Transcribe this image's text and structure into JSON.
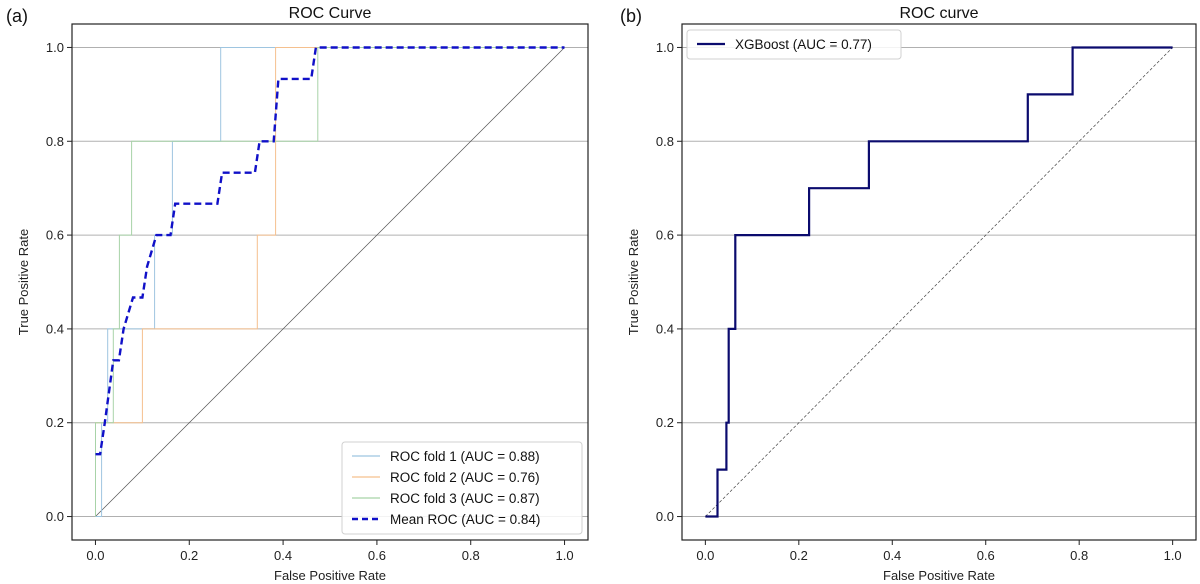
{
  "chart_data": [
    {
      "type": "line",
      "panel_label": "(a)",
      "title": "ROC Curve",
      "xlabel": "False Positive Rate",
      "ylabel": "True Positive Rate",
      "xlim": [
        -0.05,
        1.05
      ],
      "ylim": [
        -0.05,
        1.05
      ],
      "xticks": [
        "0.0",
        "0.2",
        "0.4",
        "0.6",
        "0.8",
        "1.0"
      ],
      "yticks": [
        "0.0",
        "0.2",
        "0.4",
        "0.6",
        "0.8",
        "1.0"
      ],
      "grid": "horizontal",
      "legend_position": "lower-right",
      "chance_line": {
        "x": [
          0,
          1
        ],
        "y": [
          0,
          1
        ],
        "color": "#555555",
        "style": "solid-thin"
      },
      "series": [
        {
          "name": "ROC fold 1 (AUC = 0.88)",
          "color": "#9ec5e0",
          "style": "solid",
          "x": [
            0,
            0.013,
            0.013,
            0.026,
            0.026,
            0.126,
            0.126,
            0.164,
            0.164,
            0.267,
            0.267,
            1.0
          ],
          "y": [
            0,
            0,
            0.2,
            0.2,
            0.4,
            0.4,
            0.6,
            0.6,
            0.8,
            0.8,
            1.0,
            1.0
          ]
        },
        {
          "name": "ROC fold 2 (AUC = 0.76)",
          "color": "#f5c08e",
          "style": "solid",
          "x": [
            0,
            0,
            0.1,
            0.1,
            0.345,
            0.345,
            0.384,
            0.384,
            1.0
          ],
          "y": [
            0,
            0.2,
            0.2,
            0.4,
            0.4,
            0.6,
            0.6,
            1.0,
            1.0
          ]
        },
        {
          "name": "ROC fold 3 (AUC = 0.87)",
          "color": "#a8d3a8",
          "style": "solid",
          "x": [
            0,
            0,
            0.038,
            0.038,
            0.051,
            0.051,
            0.077,
            0.077,
            0.474,
            0.474,
            1.0
          ],
          "y": [
            0,
            0.2,
            0.2,
            0.4,
            0.4,
            0.6,
            0.6,
            0.8,
            0.8,
            1.0,
            1.0
          ]
        },
        {
          "name": "Mean ROC (AUC = 0.84)",
          "color": "#1010c8",
          "style": "dashed",
          "x": [
            0,
            0.01,
            0.02,
            0.038,
            0.05,
            0.06,
            0.08,
            0.1,
            0.11,
            0.13,
            0.16,
            0.17,
            0.26,
            0.27,
            0.34,
            0.35,
            0.38,
            0.39,
            0.46,
            0.47,
            1.0
          ],
          "y": [
            0.133,
            0.133,
            0.2,
            0.333,
            0.333,
            0.4,
            0.467,
            0.467,
            0.533,
            0.6,
            0.6,
            0.667,
            0.667,
            0.733,
            0.733,
            0.8,
            0.8,
            0.933,
            0.933,
            1.0,
            1.0
          ]
        }
      ]
    },
    {
      "type": "line",
      "panel_label": "(b)",
      "title": "ROC curve",
      "xlabel": "False Positive Rate",
      "ylabel": "True Positive Rate",
      "xlim": [
        -0.05,
        1.05
      ],
      "ylim": [
        -0.05,
        1.05
      ],
      "xticks": [
        "0.0",
        "0.2",
        "0.4",
        "0.6",
        "0.8",
        "1.0"
      ],
      "yticks": [
        "0.0",
        "0.2",
        "0.4",
        "0.6",
        "0.8",
        "1.0"
      ],
      "grid": "horizontal",
      "legend_position": "upper-left",
      "chance_line": {
        "x": [
          0,
          1
        ],
        "y": [
          0,
          1
        ],
        "color": "#444444",
        "style": "dashed-thin"
      },
      "series": [
        {
          "name": "XGBoost (AUC = 0.77)",
          "color": "#0b0b6e",
          "style": "solid-thick",
          "x": [
            0,
            0.026,
            0.026,
            0.045,
            0.045,
            0.05,
            0.05,
            0.064,
            0.064,
            0.222,
            0.222,
            0.35,
            0.35,
            0.69,
            0.69,
            0.786,
            0.786,
            1.0
          ],
          "y": [
            0,
            0,
            0.1,
            0.1,
            0.2,
            0.2,
            0.4,
            0.4,
            0.6,
            0.6,
            0.7,
            0.7,
            0.8,
            0.8,
            0.9,
            0.9,
            1.0,
            1.0
          ]
        }
      ]
    }
  ]
}
